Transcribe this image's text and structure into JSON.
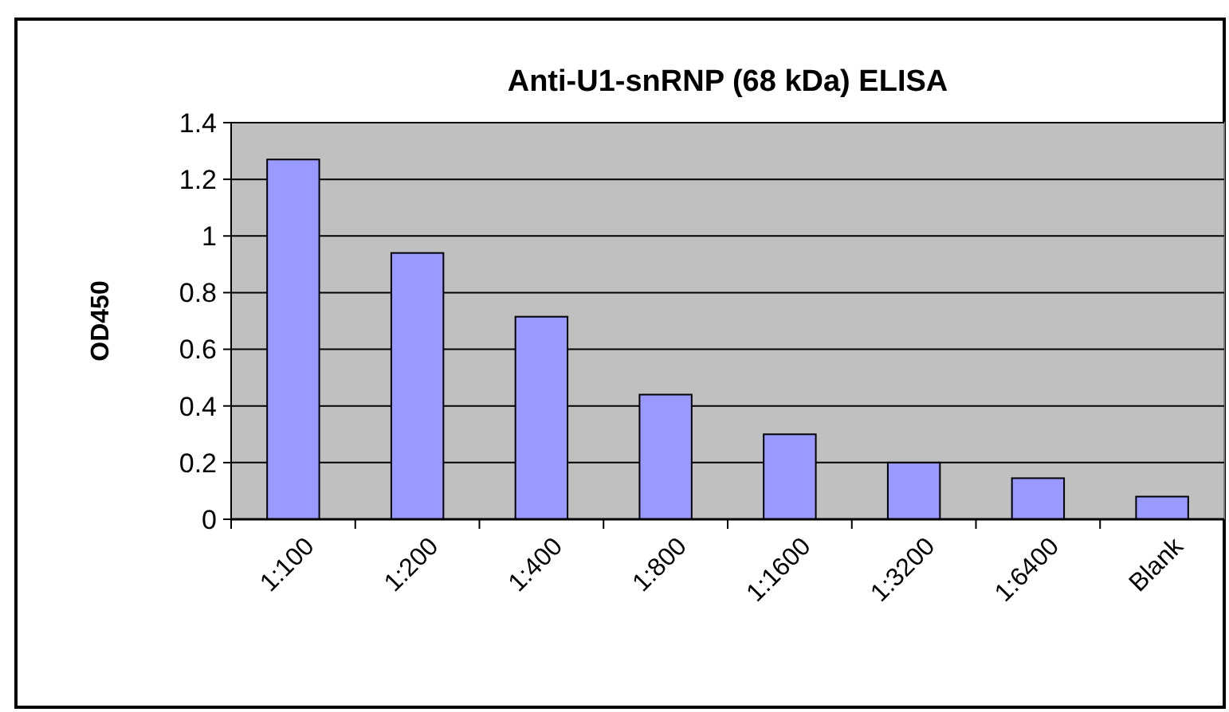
{
  "chart_data": {
    "type": "bar",
    "title": "Anti-U1-snRNP (68 kDa) ELISA",
    "ylabel": "OD450",
    "categories": [
      "1:100",
      "1:200",
      "1:400",
      "1:800",
      "1:1600",
      "1:3200",
      "1:6400",
      "Blank"
    ],
    "values": [
      1.27,
      0.94,
      0.715,
      0.44,
      0.3,
      0.2,
      0.145,
      0.08
    ],
    "color": "#9999ff",
    "ylim": [
      0,
      1.4
    ],
    "yticks": [
      0,
      0.2,
      0.4,
      0.6,
      0.8,
      1,
      1.2,
      1.4
    ],
    "grid": "y"
  }
}
